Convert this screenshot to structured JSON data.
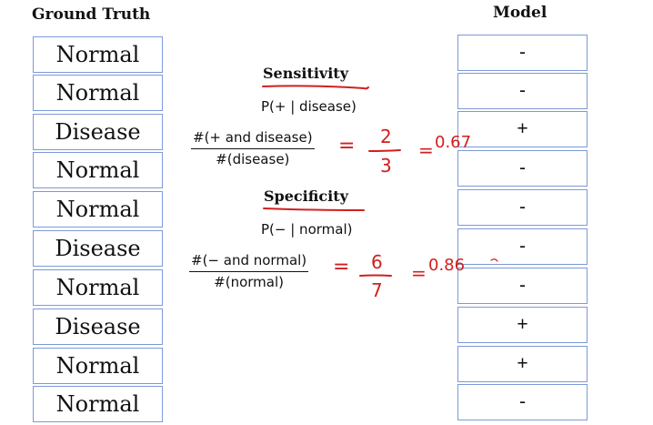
{
  "headers": {
    "ground_truth": "Ground Truth",
    "model": "Model"
  },
  "ground_truth": [
    "Normal",
    "Normal",
    "Disease",
    "Normal",
    "Normal",
    "Disease",
    "Normal",
    "Disease",
    "Normal",
    "Normal"
  ],
  "model": [
    "-",
    "-",
    "+",
    "-",
    "-",
    "-",
    "-",
    "+",
    "+",
    "-"
  ],
  "sensitivity": {
    "title": "Sensitivity",
    "prob": "P(+ | disease)",
    "numerator": "#(+ and disease)",
    "denominator": "#(disease)",
    "equals1": "=",
    "hand_num": "2",
    "hand_den": "3",
    "equals2": "=",
    "result": "0.67"
  },
  "specificity": {
    "title": "Specificity",
    "prob": "P(− | normal)",
    "numerator": "#(− and normal)",
    "denominator": "#(normal)",
    "equals1": "=",
    "hand_num": "6",
    "hand_den": "7",
    "equals2": "=",
    "result": "0.86"
  },
  "colors": {
    "cell_border": "#7c9ad8",
    "handwriting": "#d0201f"
  }
}
